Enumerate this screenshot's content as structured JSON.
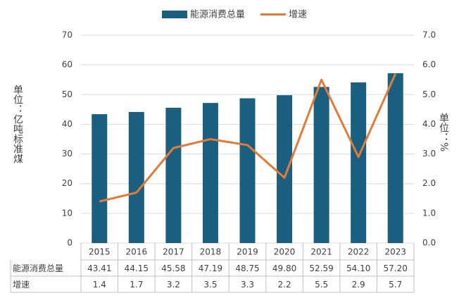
{
  "chart_data": {
    "type": "bar_line",
    "categories": [
      "2015",
      "2016",
      "2017",
      "2018",
      "2019",
      "2020",
      "2021",
      "2022",
      "2023"
    ],
    "series": [
      {
        "name": "能源消费总量",
        "color": "#1b5f80",
        "type": "bar",
        "values": [
          43.41,
          44.15,
          45.58,
          47.19,
          48.75,
          49.8,
          52.59,
          54.1,
          57.2
        ],
        "value_labels": [
          "43.41",
          "44.15",
          "45.58",
          "47.19",
          "48.75",
          "49.80",
          "52.59",
          "54.10",
          "57.20"
        ]
      },
      {
        "name": "增速",
        "color": "#e07b39",
        "type": "line",
        "axis": "y2",
        "values": [
          1.4,
          1.7,
          3.2,
          3.5,
          3.3,
          2.2,
          5.5,
          2.9,
          5.7
        ]
      }
    ],
    "y_label": "单位：亿吨标准煤",
    "y2_label": "单位：%",
    "ylim": [
      0,
      70
    ],
    "yticks": [
      0,
      10,
      20,
      30,
      40,
      50,
      60,
      70
    ],
    "y2lim": [
      0,
      7
    ],
    "y2ticks": [
      {
        "value": 0,
        "label": "0.0"
      },
      {
        "value": 1,
        "label": "1.0"
      },
      {
        "value": 2,
        "label": "2.0"
      },
      {
        "value": 3,
        "label": "3.0"
      },
      {
        "value": 4,
        "label": "4.0"
      },
      {
        "value": 5,
        "label": "5.0"
      },
      {
        "value": 6,
        "label": "6.0"
      },
      {
        "value": 7,
        "label": "7.0"
      }
    ],
    "legend": "top"
  }
}
